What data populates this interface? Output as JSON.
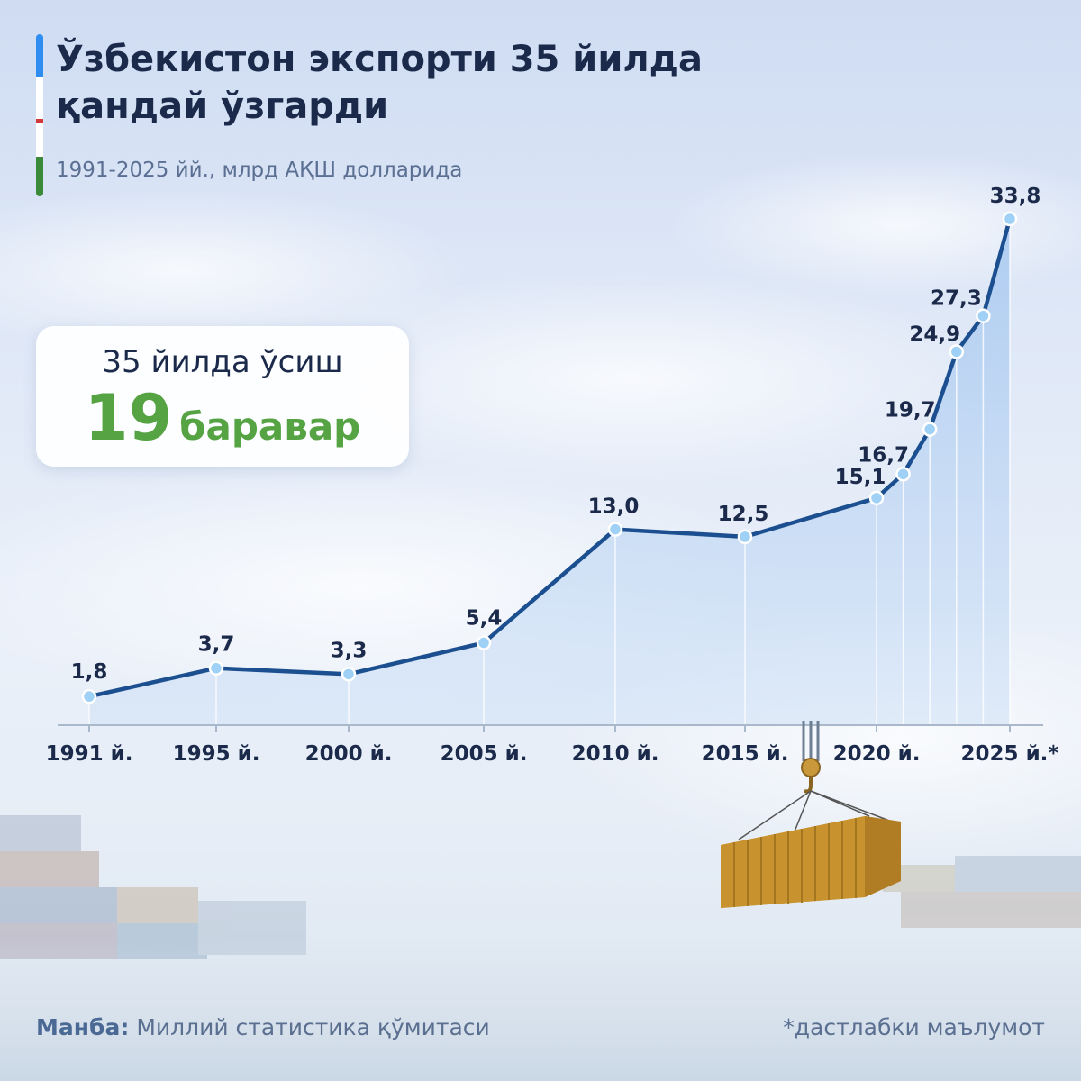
{
  "header": {
    "title_line1": "Ўзбекистон экспорти 35 йилда",
    "title_line2": "қандай ўзгарди",
    "subtitle": "1991-2025 йй., млрд АҚШ долларида"
  },
  "flag_colors": [
    "#2f8cf0",
    "#ffffff",
    "#d23a3a",
    "#ffffff",
    "#3a8a3a"
  ],
  "callout": {
    "top": "35 йилда ўсиш",
    "number": "19",
    "word": "баравар"
  },
  "chart_data": {
    "type": "area",
    "x": [
      1991,
      1995,
      2000,
      2005,
      2010,
      2015,
      2020,
      2021,
      2022,
      2023,
      2024,
      2025
    ],
    "values": [
      1.8,
      3.7,
      3.3,
      5.4,
      13.0,
      12.5,
      15.1,
      16.7,
      19.7,
      24.9,
      27.3,
      33.8
    ],
    "value_labels": [
      "1,8",
      "3,7",
      "3,3",
      "5,4",
      "13,0",
      "12,5",
      "15,1",
      "16,7",
      "19,7",
      "24,9",
      "27,3",
      "33,8"
    ],
    "x_ticks": [
      1991,
      1995,
      2000,
      2005,
      2010,
      2015,
      2020,
      2025
    ],
    "x_tick_labels": [
      "1991 й.",
      "1995 й.",
      "2000 й.",
      "2005 й.",
      "2010 й.",
      "2015 й.",
      "2020 й.",
      "2025 й.*"
    ],
    "ylim": [
      0,
      35
    ],
    "grid": false,
    "colors": {
      "line": "#1c4f8f",
      "fill": "#b7d1f0",
      "marker": "#9fd0f5"
    }
  },
  "footer": {
    "source_label": "Манба:",
    "source_text": "Миллий статистика қўмитаси",
    "note": "*дастлабки маълумот"
  }
}
